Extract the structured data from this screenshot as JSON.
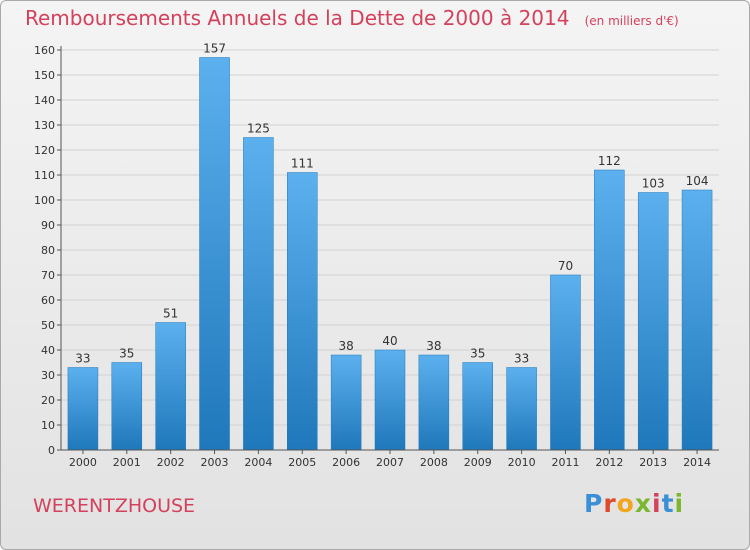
{
  "title": "Remboursements Annuels de la Dette de 2000 à 2014",
  "subtitle": "(en milliers d'€)",
  "commune": "WERENTZHOUSE",
  "logo": {
    "text": "Proxiti",
    "letter_colors": [
      "#3a8fd6",
      "#e04a2c",
      "#f2a51d",
      "#7ab62e",
      "#d4415c",
      "#3a8fd6",
      "#7ab62e"
    ]
  },
  "colors": {
    "title": "#d4415c",
    "bar_light": "#5cb0ee",
    "bar_dark": "#1f78bb",
    "grid": "#d2d2d2",
    "axis": "#555555"
  },
  "chart_data": {
    "type": "bar",
    "title": "Remboursements Annuels de la Dette de 2000 à 2014",
    "subtitle": "(en milliers d'€)",
    "categories": [
      "2000",
      "2001",
      "2002",
      "2003",
      "2004",
      "2005",
      "2006",
      "2007",
      "2008",
      "2009",
      "2010",
      "2011",
      "2012",
      "2013",
      "2014"
    ],
    "values": [
      33,
      35,
      51,
      157,
      125,
      111,
      38,
      40,
      38,
      35,
      33,
      70,
      112,
      103,
      104
    ],
    "ylim": [
      0,
      160
    ],
    "yticks": [
      0,
      10,
      20,
      30,
      40,
      50,
      60,
      70,
      80,
      90,
      100,
      110,
      120,
      130,
      140,
      150,
      160
    ],
    "xlabel": "",
    "ylabel": "",
    "grid": true,
    "legend": "none"
  }
}
